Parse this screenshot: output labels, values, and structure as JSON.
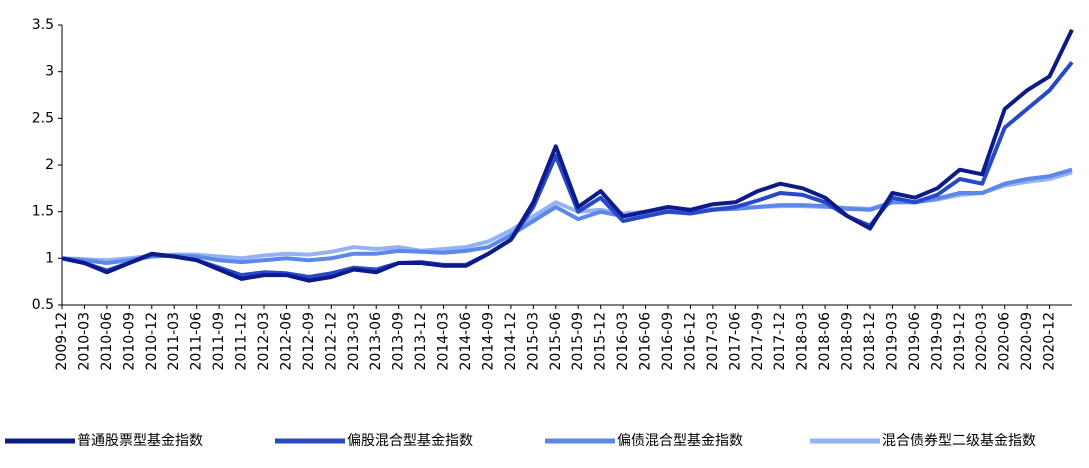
{
  "chart_data": {
    "type": "line",
    "categories": [
      "2009-12",
      "2010-03",
      "2010-06",
      "2010-09",
      "2010-12",
      "2011-03",
      "2011-06",
      "2011-09",
      "2011-12",
      "2012-03",
      "2012-06",
      "2012-09",
      "2012-12",
      "2013-03",
      "2013-06",
      "2013-09",
      "2013-12",
      "2014-03",
      "2014-06",
      "2014-09",
      "2014-12",
      "2015-03",
      "2015-06",
      "2015-09",
      "2015-12",
      "2016-03",
      "2016-06",
      "2016-09",
      "2016-12",
      "2017-03",
      "2017-06",
      "2017-09",
      "2017-12",
      "2018-03",
      "2018-06",
      "2018-09",
      "2018-12",
      "2019-03",
      "2019-06",
      "2019-09",
      "2019-12",
      "2020-03",
      "2020-06",
      "2020-09",
      "2020-12",
      null
    ],
    "series": [
      {
        "name": "普通股票型基金指数",
        "color": "#0d1a8a",
        "values": [
          1.0,
          0.95,
          0.85,
          0.95,
          1.05,
          1.02,
          0.98,
          0.88,
          0.78,
          0.82,
          0.82,
          0.76,
          0.8,
          0.88,
          0.85,
          0.95,
          0.95,
          0.92,
          0.92,
          1.05,
          1.2,
          1.6,
          2.2,
          1.55,
          1.72,
          1.45,
          1.5,
          1.55,
          1.52,
          1.58,
          1.6,
          1.72,
          1.8,
          1.75,
          1.65,
          1.45,
          1.32,
          1.7,
          1.65,
          1.75,
          1.95,
          1.9,
          2.6,
          2.8,
          2.95,
          3.45
        ]
      },
      {
        "name": "偏股混合型基金指数",
        "color": "#2848c8",
        "values": [
          1.0,
          0.95,
          0.87,
          0.95,
          1.04,
          1.02,
          0.98,
          0.9,
          0.82,
          0.85,
          0.84,
          0.8,
          0.84,
          0.9,
          0.88,
          0.95,
          0.96,
          0.93,
          0.93,
          1.05,
          1.2,
          1.55,
          2.1,
          1.5,
          1.65,
          1.4,
          1.45,
          1.5,
          1.48,
          1.52,
          1.55,
          1.62,
          1.7,
          1.68,
          1.6,
          1.45,
          1.35,
          1.65,
          1.6,
          1.68,
          1.85,
          1.8,
          2.4,
          2.6,
          2.8,
          3.1
        ]
      },
      {
        "name": "偏债混合型基金指数",
        "color": "#5b88ea",
        "values": [
          1.0,
          0.98,
          0.95,
          0.98,
          1.02,
          1.03,
          1.02,
          0.98,
          0.96,
          0.98,
          1.0,
          0.98,
          1.0,
          1.05,
          1.05,
          1.08,
          1.07,
          1.06,
          1.08,
          1.12,
          1.25,
          1.4,
          1.55,
          1.42,
          1.5,
          1.45,
          1.48,
          1.5,
          1.5,
          1.52,
          1.53,
          1.55,
          1.57,
          1.57,
          1.56,
          1.53,
          1.52,
          1.6,
          1.6,
          1.64,
          1.7,
          1.7,
          1.8,
          1.85,
          1.88,
          1.95
        ]
      },
      {
        "name": "混合债券型二级基金指数",
        "color": "#93b3f5",
        "values": [
          1.0,
          0.99,
          0.98,
          1.0,
          1.03,
          1.04,
          1.04,
          1.02,
          1.0,
          1.03,
          1.05,
          1.04,
          1.07,
          1.12,
          1.1,
          1.12,
          1.08,
          1.1,
          1.12,
          1.18,
          1.3,
          1.45,
          1.6,
          1.5,
          1.52,
          1.48,
          1.5,
          1.52,
          1.52,
          1.53,
          1.54,
          1.55,
          1.56,
          1.56,
          1.55,
          1.54,
          1.53,
          1.6,
          1.6,
          1.63,
          1.68,
          1.7,
          1.78,
          1.82,
          1.85,
          1.92
        ]
      }
    ],
    "ylim": [
      0.5,
      3.5
    ],
    "yticks": [
      0.5,
      1,
      1.5,
      2,
      2.5,
      3,
      3.5
    ],
    "grid": false
  }
}
